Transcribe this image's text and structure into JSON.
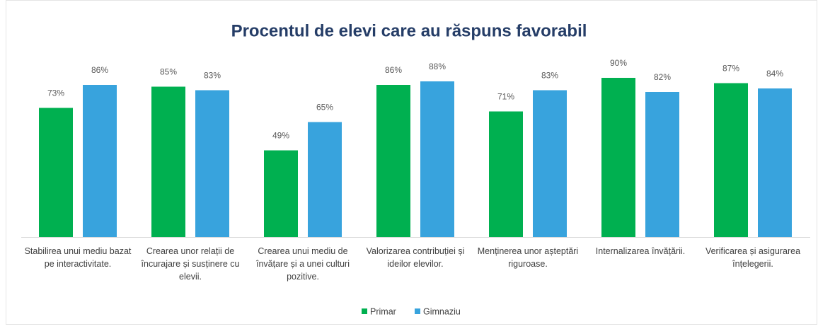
{
  "chart_data": {
    "type": "bar",
    "title": "Procentul de elevi care au răspuns favorabil",
    "categories": [
      "Stabilirea unui mediu bazat pe interactivitate.",
      "Crearea unor relații de încurajare și susținere cu elevii.",
      "Crearea unui mediu de învățare și a unei culturi pozitive.",
      "Valorizarea contribuției și ideilor elevilor.",
      "Menținerea unor așteptări riguroase.",
      "Internalizarea învățării.",
      "Verificarea și asigurarea înțelegerii."
    ],
    "series": [
      {
        "name": "Primar",
        "color": "#00b050",
        "values": [
          73,
          85,
          49,
          86,
          71,
          90,
          87
        ],
        "value_labels": [
          "73%",
          "85%",
          "49%",
          "86%",
          "71%",
          "90%",
          "87%"
        ]
      },
      {
        "name": "Gimnaziu",
        "color": "#38a3dd",
        "values": [
          86,
          83,
          65,
          88,
          83,
          82,
          84
        ],
        "value_labels": [
          "86%",
          "83%",
          "65%",
          "88%",
          "83%",
          "82%",
          "84%"
        ]
      }
    ],
    "legend": "bottom"
  }
}
